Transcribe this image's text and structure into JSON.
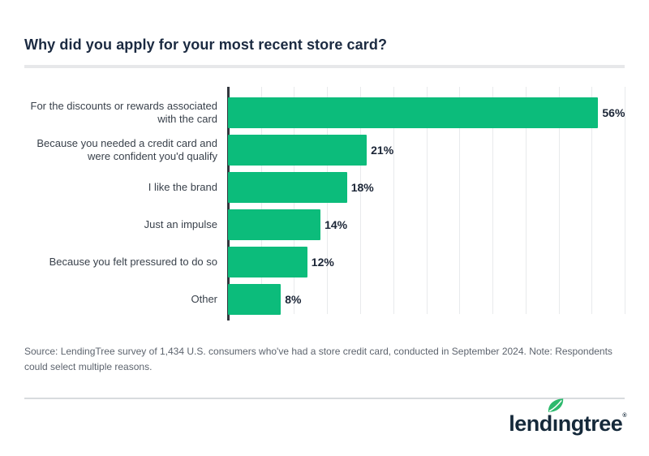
{
  "page": {
    "title": "Why did you apply for your most recent store card?",
    "source_note": "Source: LendingTree survey of 1,434 U.S. consumers who've had a store credit card, conducted in September 2024. Note: Respondents could select multiple reasons.",
    "logo": {
      "pre": "lend",
      "dotless_i": "ı",
      "post": "ngtree",
      "registered": "®"
    }
  },
  "colors": {
    "bar": "#0cbc7b",
    "title": "#1b2a41",
    "label": "#39414b",
    "value": "#1b2536",
    "axis": "#32373e",
    "gridline": "#e8eaec",
    "divider": "#e7e8ea",
    "rule": "#d8dbde",
    "source": "#5d646e",
    "wordmark": "#15293a",
    "leaf": "#2db96d"
  },
  "chart_data": {
    "type": "bar",
    "orientation": "horizontal",
    "title": "Why did you apply for your most recent store card?",
    "categories": [
      "For the discounts or rewards associated with the card",
      "Because you needed a credit card and were confident you'd qualify",
      "I like the brand",
      "Just an impulse",
      "Because you felt pressured to do so",
      "Other"
    ],
    "values": [
      56,
      21,
      18,
      14,
      12,
      8
    ],
    "value_labels": [
      "56%",
      "21%",
      "18%",
      "14%",
      "12%",
      "8%"
    ],
    "xlabel": "",
    "ylabel": "",
    "xlim": [
      0,
      60
    ],
    "gridline_step": 5,
    "grid": true,
    "legend": false
  }
}
